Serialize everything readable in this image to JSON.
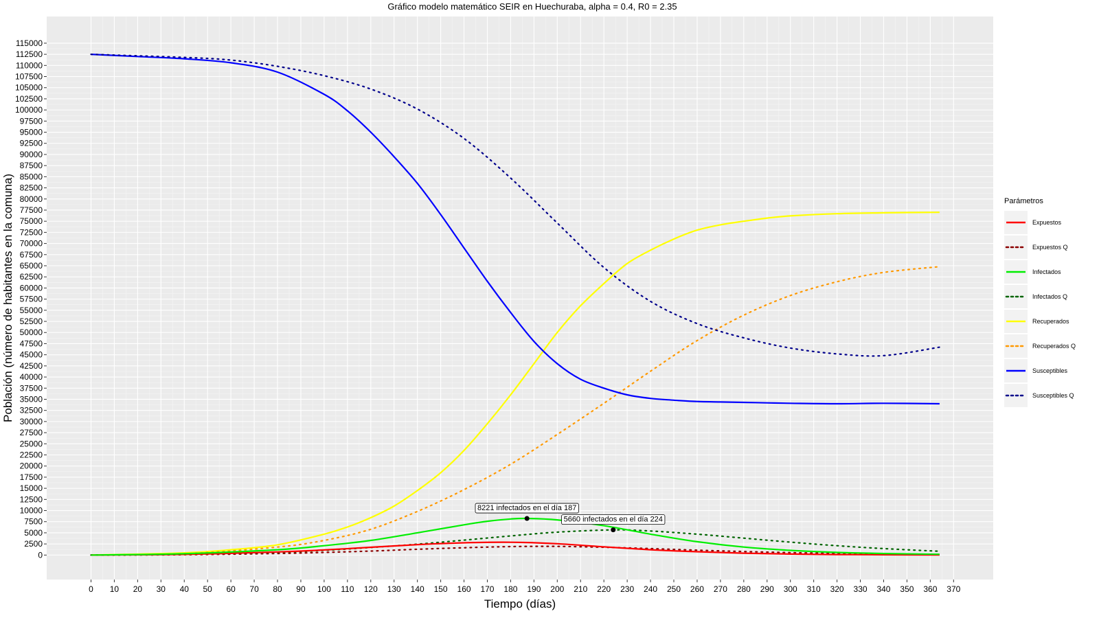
{
  "chart_data": {
    "type": "line",
    "title": "Gráfico modelo matemático SEIR en Huechuraba, alpha = 0.4, R0 = 2.35",
    "xlabel": "Tiempo (días)",
    "ylabel": "Población (número de habitantes en la comuna)",
    "xlim": [
      -19,
      387
    ],
    "ylim": [
      -5500,
      121000
    ],
    "x_ticks": [
      0,
      10,
      20,
      30,
      40,
      50,
      60,
      70,
      80,
      90,
      100,
      110,
      120,
      130,
      140,
      150,
      160,
      170,
      180,
      190,
      200,
      210,
      220,
      230,
      240,
      250,
      260,
      270,
      280,
      290,
      300,
      310,
      320,
      330,
      340,
      350,
      360,
      370
    ],
    "y_ticks": [
      0,
      2500,
      5000,
      7500,
      10000,
      12500,
      15000,
      17500,
      20000,
      22500,
      25000,
      27500,
      30000,
      32500,
      35000,
      37500,
      40000,
      42500,
      45000,
      47500,
      50000,
      52500,
      55000,
      57500,
      60000,
      62500,
      65000,
      67500,
      70000,
      72500,
      75000,
      77500,
      80000,
      82500,
      85000,
      87500,
      90000,
      92500,
      95000,
      97500,
      100000,
      102500,
      105000,
      107500,
      110000,
      112500,
      115000
    ],
    "grid": true,
    "legend_title": "Parámetros",
    "legend_position": "right",
    "series": [
      {
        "name": "Expuestos",
        "color": "#ff0000",
        "dash": "solid",
        "x": [
          0,
          40,
          80,
          100,
          120,
          140,
          160,
          180,
          200,
          220,
          240,
          260,
          280,
          300,
          320,
          340,
          364
        ],
        "y": [
          0,
          150,
          700,
          1150,
          1750,
          2350,
          2750,
          2880,
          2550,
          1850,
          1200,
          750,
          420,
          230,
          120,
          70,
          40
        ]
      },
      {
        "name": "Expuestos Q",
        "color": "#8b0000",
        "dash": "dotted",
        "x": [
          0,
          40,
          80,
          100,
          120,
          140,
          160,
          180,
          200,
          220,
          240,
          260,
          280,
          300,
          320,
          340,
          364
        ],
        "y": [
          0,
          80,
          350,
          600,
          900,
          1300,
          1650,
          1900,
          1950,
          1750,
          1450,
          1100,
          800,
          550,
          370,
          240,
          150
        ]
      },
      {
        "name": "Infectados",
        "color": "#00ee00",
        "dash": "solid",
        "x": [
          0,
          40,
          80,
          100,
          120,
          140,
          160,
          170,
          180,
          187,
          200,
          220,
          240,
          260,
          280,
          300,
          320,
          340,
          364
        ],
        "y": [
          0,
          300,
          1200,
          2100,
          3300,
          5000,
          6800,
          7600,
          8100,
          8221,
          7900,
          6600,
          4700,
          3000,
          1800,
          1050,
          600,
          350,
          180
        ]
      },
      {
        "name": "Infectados Q",
        "color": "#006400",
        "dash": "dotted",
        "x": [
          0,
          40,
          80,
          100,
          120,
          140,
          160,
          180,
          200,
          224,
          240,
          260,
          280,
          300,
          320,
          340,
          364
        ],
        "y": [
          0,
          150,
          600,
          1050,
          1700,
          2450,
          3350,
          4300,
          5150,
          5660,
          5400,
          4700,
          3800,
          2900,
          2100,
          1450,
          850
        ]
      },
      {
        "name": "Recuperados",
        "color": "#ffff00",
        "dash": "solid",
        "x": [
          0,
          40,
          60,
          80,
          100,
          110,
          120,
          130,
          140,
          150,
          160,
          170,
          180,
          190,
          200,
          210,
          220,
          230,
          240,
          250,
          260,
          270,
          280,
          290,
          300,
          320,
          340,
          364
        ],
        "y": [
          0,
          500,
          1200,
          2300,
          4700,
          6300,
          8400,
          11000,
          14500,
          18500,
          23500,
          29500,
          36000,
          43000,
          50000,
          56000,
          61000,
          65500,
          68500,
          71000,
          73000,
          74200,
          75000,
          75700,
          76200,
          76700,
          76900,
          77000
        ]
      },
      {
        "name": "Recuperados Q",
        "color": "#ff9900",
        "dash": "dotted",
        "x": [
          0,
          40,
          80,
          100,
          120,
          140,
          160,
          180,
          200,
          220,
          240,
          260,
          280,
          300,
          320,
          340,
          364
        ],
        "y": [
          0,
          300,
          1800,
          3300,
          5800,
          9800,
          14700,
          20400,
          27100,
          34100,
          41300,
          48200,
          53900,
          58300,
          61400,
          63500,
          64800
        ]
      },
      {
        "name": "Susceptibles",
        "color": "#0000ff",
        "dash": "solid",
        "x": [
          0,
          20,
          40,
          60,
          80,
          100,
          110,
          120,
          130,
          140,
          150,
          160,
          170,
          180,
          190,
          200,
          210,
          220,
          230,
          240,
          250,
          260,
          270,
          280,
          290,
          300,
          320,
          340,
          364
        ],
        "y": [
          112500,
          112000,
          111500,
          110600,
          108500,
          103500,
          99800,
          95000,
          89500,
          83500,
          76500,
          69000,
          61500,
          54500,
          48000,
          43000,
          39500,
          37500,
          36000,
          35200,
          34800,
          34500,
          34400,
          34300,
          34200,
          34100,
          34000,
          34100,
          34000
        ]
      },
      {
        "name": "Susceptibles Q",
        "color": "#00008b",
        "dash": "dotted",
        "x": [
          0,
          40,
          60,
          80,
          100,
          120,
          140,
          160,
          180,
          200,
          220,
          240,
          260,
          280,
          300,
          320,
          340,
          364
        ],
        "y": [
          112500,
          111800,
          111200,
          109800,
          107700,
          104700,
          100200,
          93600,
          84700,
          74600,
          64600,
          57000,
          52000,
          48800,
          46500,
          45200,
          44800,
          46700
        ]
      }
    ],
    "annotations": [
      {
        "text": "8221  infectados  en el día  187",
        "x": 187,
        "y": 8221
      },
      {
        "text": "5660  infectados  en el día  224",
        "x": 224,
        "y": 5660
      }
    ]
  }
}
